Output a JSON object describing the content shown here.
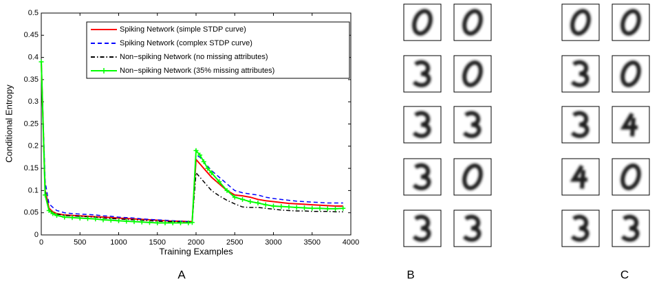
{
  "chart_data": {
    "type": "line",
    "x_label": "Training Examples",
    "y_label": "Conditional Entropy",
    "x": [
      0,
      50,
      100,
      150,
      200,
      300,
      400,
      500,
      600,
      700,
      800,
      900,
      1000,
      1100,
      1200,
      1300,
      1400,
      1500,
      1600,
      1700,
      1800,
      1900,
      1950,
      2000,
      2050,
      2100,
      2150,
      2200,
      2300,
      2400,
      2500,
      2600,
      2700,
      2800,
      2900,
      3000,
      3100,
      3200,
      3300,
      3400,
      3500,
      3600,
      3700,
      3800,
      3900
    ],
    "series": [
      {
        "name": "Spiking Network (simple STDP curve)",
        "color": "#ff0000",
        "dash": "solid",
        "marker": "none",
        "values": [
          0.39,
          0.1,
          0.06,
          0.052,
          0.048,
          0.045,
          0.044,
          0.043,
          0.042,
          0.041,
          0.04,
          0.039,
          0.038,
          0.037,
          0.036,
          0.035,
          0.034,
          0.033,
          0.032,
          0.031,
          0.031,
          0.03,
          0.03,
          0.17,
          0.16,
          0.15,
          0.14,
          0.13,
          0.115,
          0.1,
          0.09,
          0.088,
          0.085,
          0.08,
          0.077,
          0.075,
          0.073,
          0.071,
          0.07,
          0.069,
          0.068,
          0.067,
          0.066,
          0.065,
          0.065
        ]
      },
      {
        "name": "Spiking Network (complex STDP curve)",
        "color": "#0000ff",
        "dash": "dashed",
        "marker": "none",
        "values": [
          0.39,
          0.12,
          0.07,
          0.062,
          0.055,
          0.05,
          0.048,
          0.047,
          0.046,
          0.045,
          0.043,
          0.042,
          0.04,
          0.039,
          0.038,
          0.036,
          0.035,
          0.034,
          0.033,
          0.032,
          0.031,
          0.03,
          0.03,
          0.18,
          0.175,
          0.165,
          0.155,
          0.145,
          0.13,
          0.115,
          0.1,
          0.095,
          0.092,
          0.09,
          0.085,
          0.082,
          0.08,
          0.078,
          0.076,
          0.075,
          0.074,
          0.073,
          0.072,
          0.072,
          0.072
        ]
      },
      {
        "name": "Non−spiking Network (no missing attributes)",
        "color": "#000000",
        "dash": "dashdot",
        "marker": "none",
        "values": [
          0.39,
          0.1,
          0.055,
          0.05,
          0.047,
          0.044,
          0.043,
          0.042,
          0.041,
          0.04,
          0.038,
          0.037,
          0.036,
          0.035,
          0.034,
          0.033,
          0.032,
          0.031,
          0.03,
          0.03,
          0.029,
          0.029,
          0.029,
          0.14,
          0.13,
          0.12,
          0.11,
          0.1,
          0.088,
          0.078,
          0.07,
          0.063,
          0.062,
          0.062,
          0.06,
          0.058,
          0.056,
          0.055,
          0.054,
          0.054,
          0.053,
          0.053,
          0.053,
          0.052,
          0.052
        ]
      },
      {
        "name": "Non−spiking Network (35% missing attributes)",
        "color": "#00ff00",
        "dash": "solid",
        "marker": "plus",
        "values": [
          0.39,
          0.09,
          0.055,
          0.048,
          0.044,
          0.04,
          0.039,
          0.038,
          0.037,
          0.036,
          0.034,
          0.033,
          0.032,
          0.031,
          0.03,
          0.029,
          0.028,
          0.027,
          0.027,
          0.027,
          0.027,
          0.027,
          0.028,
          0.19,
          0.18,
          0.165,
          0.15,
          0.14,
          0.12,
          0.1,
          0.085,
          0.08,
          0.075,
          0.072,
          0.068,
          0.065,
          0.064,
          0.063,
          0.062,
          0.061,
          0.06,
          0.06,
          0.059,
          0.059,
          0.06
        ]
      }
    ],
    "xlim": [
      0,
      4000
    ],
    "xticks": [
      0,
      500,
      1000,
      1500,
      2000,
      2500,
      3000,
      3500,
      4000
    ],
    "ylim": [
      0,
      0.5
    ],
    "yticks": [
      0,
      0.05,
      0.1,
      0.15,
      0.2,
      0.25,
      0.3,
      0.35,
      0.4,
      0.45,
      0.5
    ],
    "legend": "upper right"
  },
  "panel_labels": [
    "A",
    "B",
    "C"
  ]
}
